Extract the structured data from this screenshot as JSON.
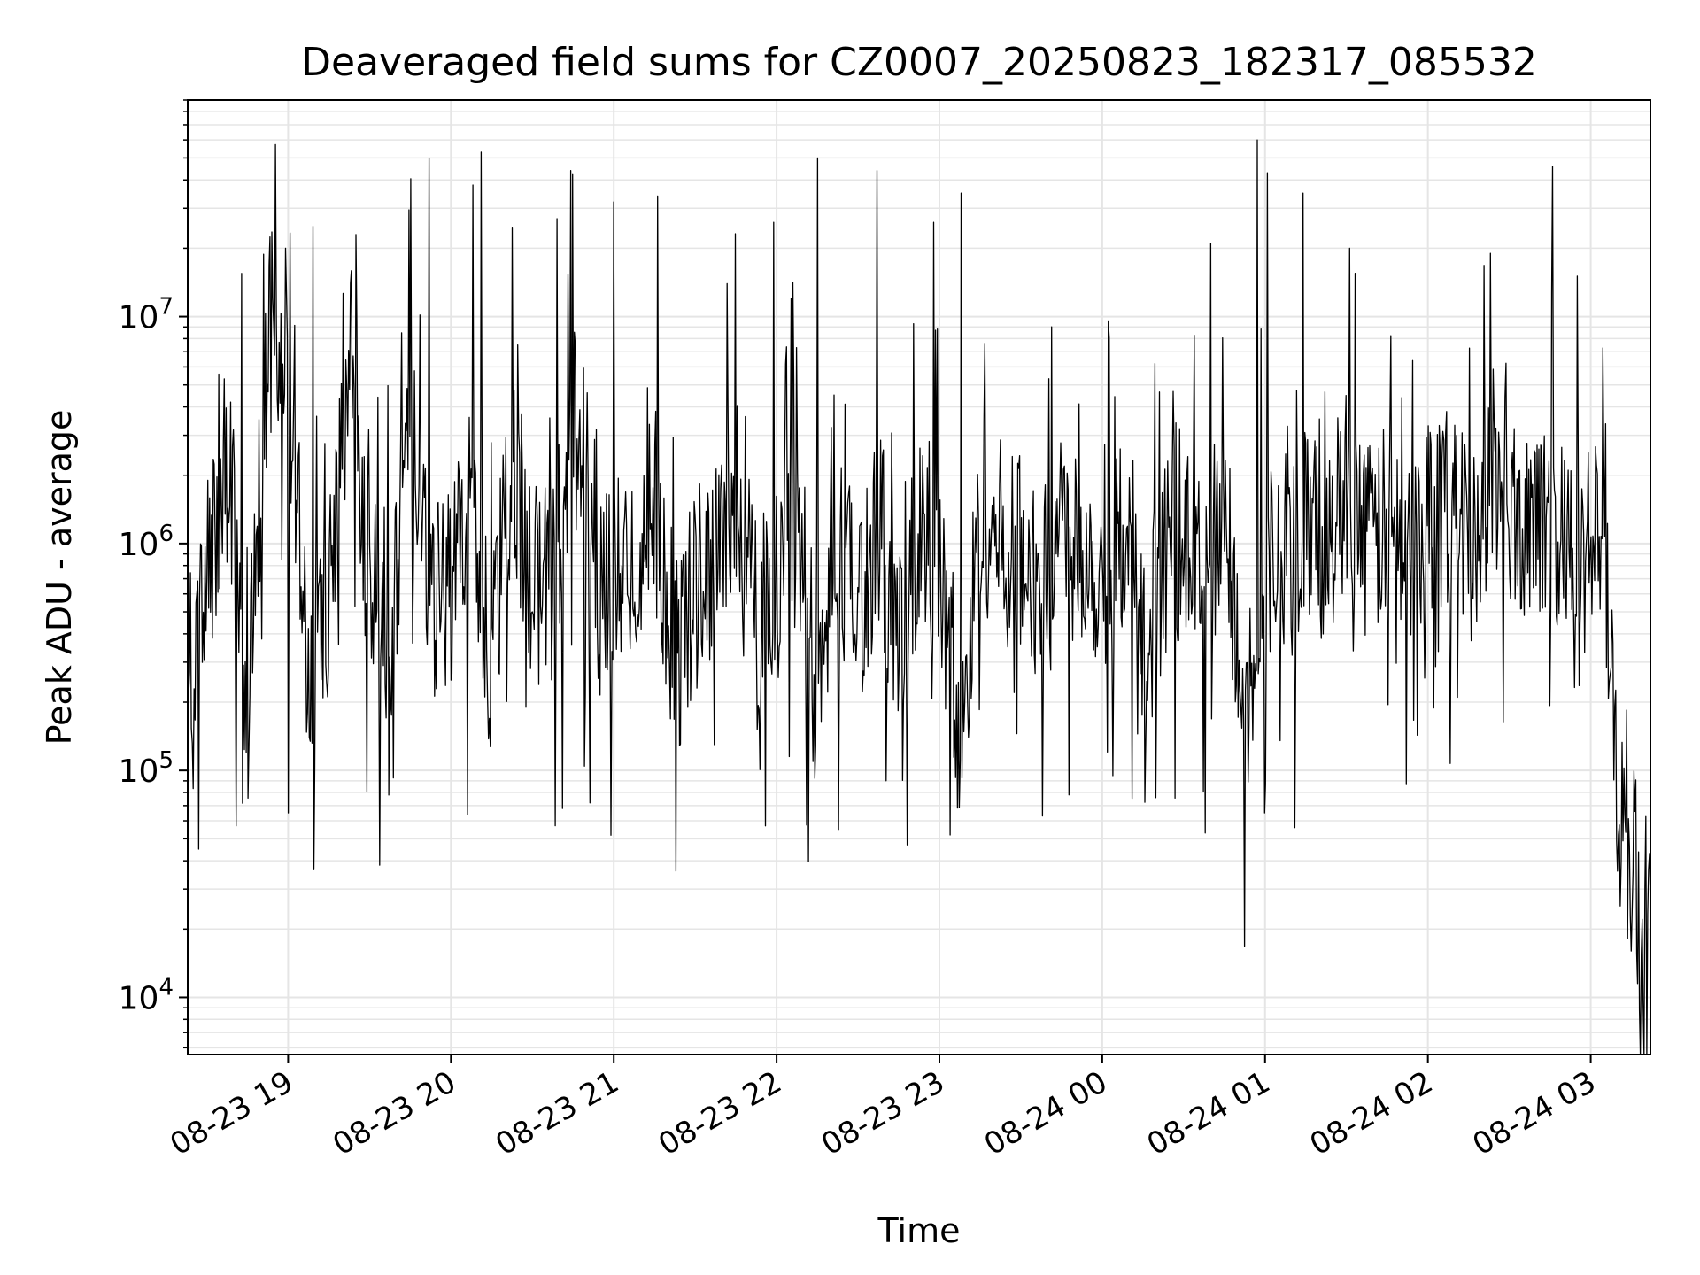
{
  "chart_data": {
    "type": "line",
    "title": "Deaveraged field sums for CZ0007_20250823_182317_085532",
    "xlabel": "Time",
    "ylabel": "Peak ADU - average",
    "yscale": "log",
    "grid": true,
    "grid_minor": true,
    "xlim": [
      "2025-08-23 18:23",
      "2025-08-24 03:22"
    ],
    "ylim": [
      5600,
      90000000
    ],
    "x_ticks": [
      "2025-08-23 19:00",
      "2025-08-23 20:00",
      "2025-08-23 21:00",
      "2025-08-23 22:00",
      "2025-08-23 23:00",
      "2025-08-24 00:00",
      "2025-08-24 01:00",
      "2025-08-24 02:00",
      "2025-08-24 03:00"
    ],
    "x_tick_labels": [
      "08-23 19",
      "08-23 20",
      "08-23 21",
      "08-23 22",
      "08-23 23",
      "08-24 00",
      "08-24 01",
      "08-24 02",
      "08-24 03"
    ],
    "y_ticks": [
      10000,
      100000,
      1000000,
      10000000
    ],
    "y_tick_labels": [
      {
        "base": "10",
        "exp": "4"
      },
      {
        "base": "10",
        "exp": "5"
      },
      {
        "base": "10",
        "exp": "6"
      },
      {
        "base": "10",
        "exp": "7"
      }
    ],
    "line_color": "#000000",
    "grid_color": "#e5e5e5",
    "series": [
      {
        "name": "",
        "x": [
          "2025-08-23 18:23",
          "2025-08-23 18:30",
          "2025-08-23 18:38",
          "2025-08-23 18:45",
          "2025-08-23 18:53",
          "2025-08-23 19:00",
          "2025-08-23 19:08",
          "2025-08-23 19:15",
          "2025-08-23 19:23",
          "2025-08-23 19:30",
          "2025-08-23 19:38",
          "2025-08-23 19:45",
          "2025-08-23 19:53",
          "2025-08-23 20:00",
          "2025-08-23 20:08",
          "2025-08-23 20:15",
          "2025-08-23 20:23",
          "2025-08-23 20:30",
          "2025-08-23 20:38",
          "2025-08-23 20:45",
          "2025-08-23 20:53",
          "2025-08-23 21:00",
          "2025-08-23 21:08",
          "2025-08-23 21:15",
          "2025-08-23 21:23",
          "2025-08-23 21:30",
          "2025-08-23 21:38",
          "2025-08-23 21:45",
          "2025-08-23 21:53",
          "2025-08-23 22:00",
          "2025-08-23 22:08",
          "2025-08-23 22:15",
          "2025-08-23 22:23",
          "2025-08-23 22:30",
          "2025-08-23 22:38",
          "2025-08-23 22:45",
          "2025-08-23 22:53",
          "2025-08-23 23:00",
          "2025-08-23 23:08",
          "2025-08-23 23:15",
          "2025-08-23 23:23",
          "2025-08-23 23:30",
          "2025-08-23 23:38",
          "2025-08-23 23:45",
          "2025-08-23 23:53",
          "2025-08-24 00:00",
          "2025-08-24 00:08",
          "2025-08-24 00:15",
          "2025-08-24 00:23",
          "2025-08-24 00:30",
          "2025-08-24 00:38",
          "2025-08-24 00:45",
          "2025-08-24 00:53",
          "2025-08-24 01:00",
          "2025-08-24 01:08",
          "2025-08-24 01:15",
          "2025-08-24 01:23",
          "2025-08-24 01:30",
          "2025-08-24 01:38",
          "2025-08-24 01:45",
          "2025-08-24 01:53",
          "2025-08-24 02:00",
          "2025-08-24 02:08",
          "2025-08-24 02:15",
          "2025-08-24 02:23",
          "2025-08-24 02:30",
          "2025-08-24 02:38",
          "2025-08-24 02:45",
          "2025-08-24 02:53",
          "2025-08-24 03:00",
          "2025-08-24 03:05",
          "2025-08-24 03:10",
          "2025-08-24 03:15",
          "2025-08-24 03:20"
        ],
        "y": [
          90000,
          800000,
          2500000,
          150000,
          9000000,
          6000000,
          200000,
          500000,
          8000000,
          600000,
          400000,
          3000000,
          500000,
          700000,
          1500000,
          300000,
          2500000,
          600000,
          700000,
          4000000,
          500000,
          700000,
          800000,
          1500000,
          300000,
          600000,
          1000000,
          2000000,
          400000,
          900000,
          1200000,
          200000,
          1000000,
          500000,
          1300000,
          300000,
          1200000,
          800000,
          100000,
          1500000,
          1000000,
          900000,
          600000,
          1100000,
          1000000,
          700000,
          1200000,
          300000,
          900000,
          1000000,
          600000,
          1100000,
          200000,
          1000000,
          600000,
          1200000,
          900000,
          2000000,
          1000000,
          1200000,
          900000,
          1300000,
          1500000,
          1000000,
          1800000,
          1200000,
          1400000,
          1000000,
          1300000,
          1000000,
          900000,
          60000,
          40000,
          25000
        ],
        "spikes_high": [
          [
            "2025-08-23 18:43",
            15500000
          ],
          [
            "2025-08-23 18:59",
            20000000
          ],
          [
            "2025-08-23 19:09",
            25000000
          ],
          [
            "2025-08-23 19:25",
            23000000
          ],
          [
            "2025-08-23 19:52",
            50000000
          ],
          [
            "2025-08-23 20:08",
            38000000
          ],
          [
            "2025-08-23 20:11",
            53000000
          ],
          [
            "2025-08-23 20:39",
            27000000
          ],
          [
            "2025-08-23 20:44",
            44000000
          ],
          [
            "2025-08-23 21:00",
            32000000
          ],
          [
            "2025-08-23 21:16",
            34000000
          ],
          [
            "2025-08-23 21:59",
            26000000
          ],
          [
            "2025-08-23 22:15",
            50000000
          ],
          [
            "2025-08-23 22:37",
            44000000
          ],
          [
            "2025-08-23 22:58",
            26000000
          ],
          [
            "2025-08-23 23:08",
            35000000
          ],
          [
            "2025-08-24 00:40",
            21000000
          ],
          [
            "2025-08-24 00:57",
            60000000
          ],
          [
            "2025-08-24 01:01",
            43000000
          ],
          [
            "2025-08-24 01:14",
            35000000
          ],
          [
            "2025-08-24 01:31",
            20000000
          ],
          [
            "2025-08-24 02:23",
            19000000
          ],
          [
            "2025-08-24 02:46",
            46000000
          ]
        ],
        "spikes_low": [
          [
            "2025-08-23 18:27",
            45000
          ],
          [
            "2025-08-23 18:41",
            57000
          ],
          [
            "2025-08-23 19:00",
            65000
          ],
          [
            "2025-08-23 20:06",
            64000
          ],
          [
            "2025-08-23 20:41",
            68000
          ],
          [
            "2025-08-23 21:56",
            57000
          ],
          [
            "2025-08-23 22:23",
            55000
          ],
          [
            "2025-08-23 22:48",
            47000
          ],
          [
            "2025-08-23 23:04",
            52000
          ],
          [
            "2025-08-24 00:38",
            53000
          ],
          [
            "2025-08-24 01:00",
            65000
          ],
          [
            "2025-08-24 01:11",
            56000
          ],
          [
            "2025-08-24 03:10",
            36000
          ],
          [
            "2025-08-24 03:15",
            16000
          ],
          [
            "2025-08-24 03:18",
            8800
          ]
        ]
      }
    ]
  }
}
